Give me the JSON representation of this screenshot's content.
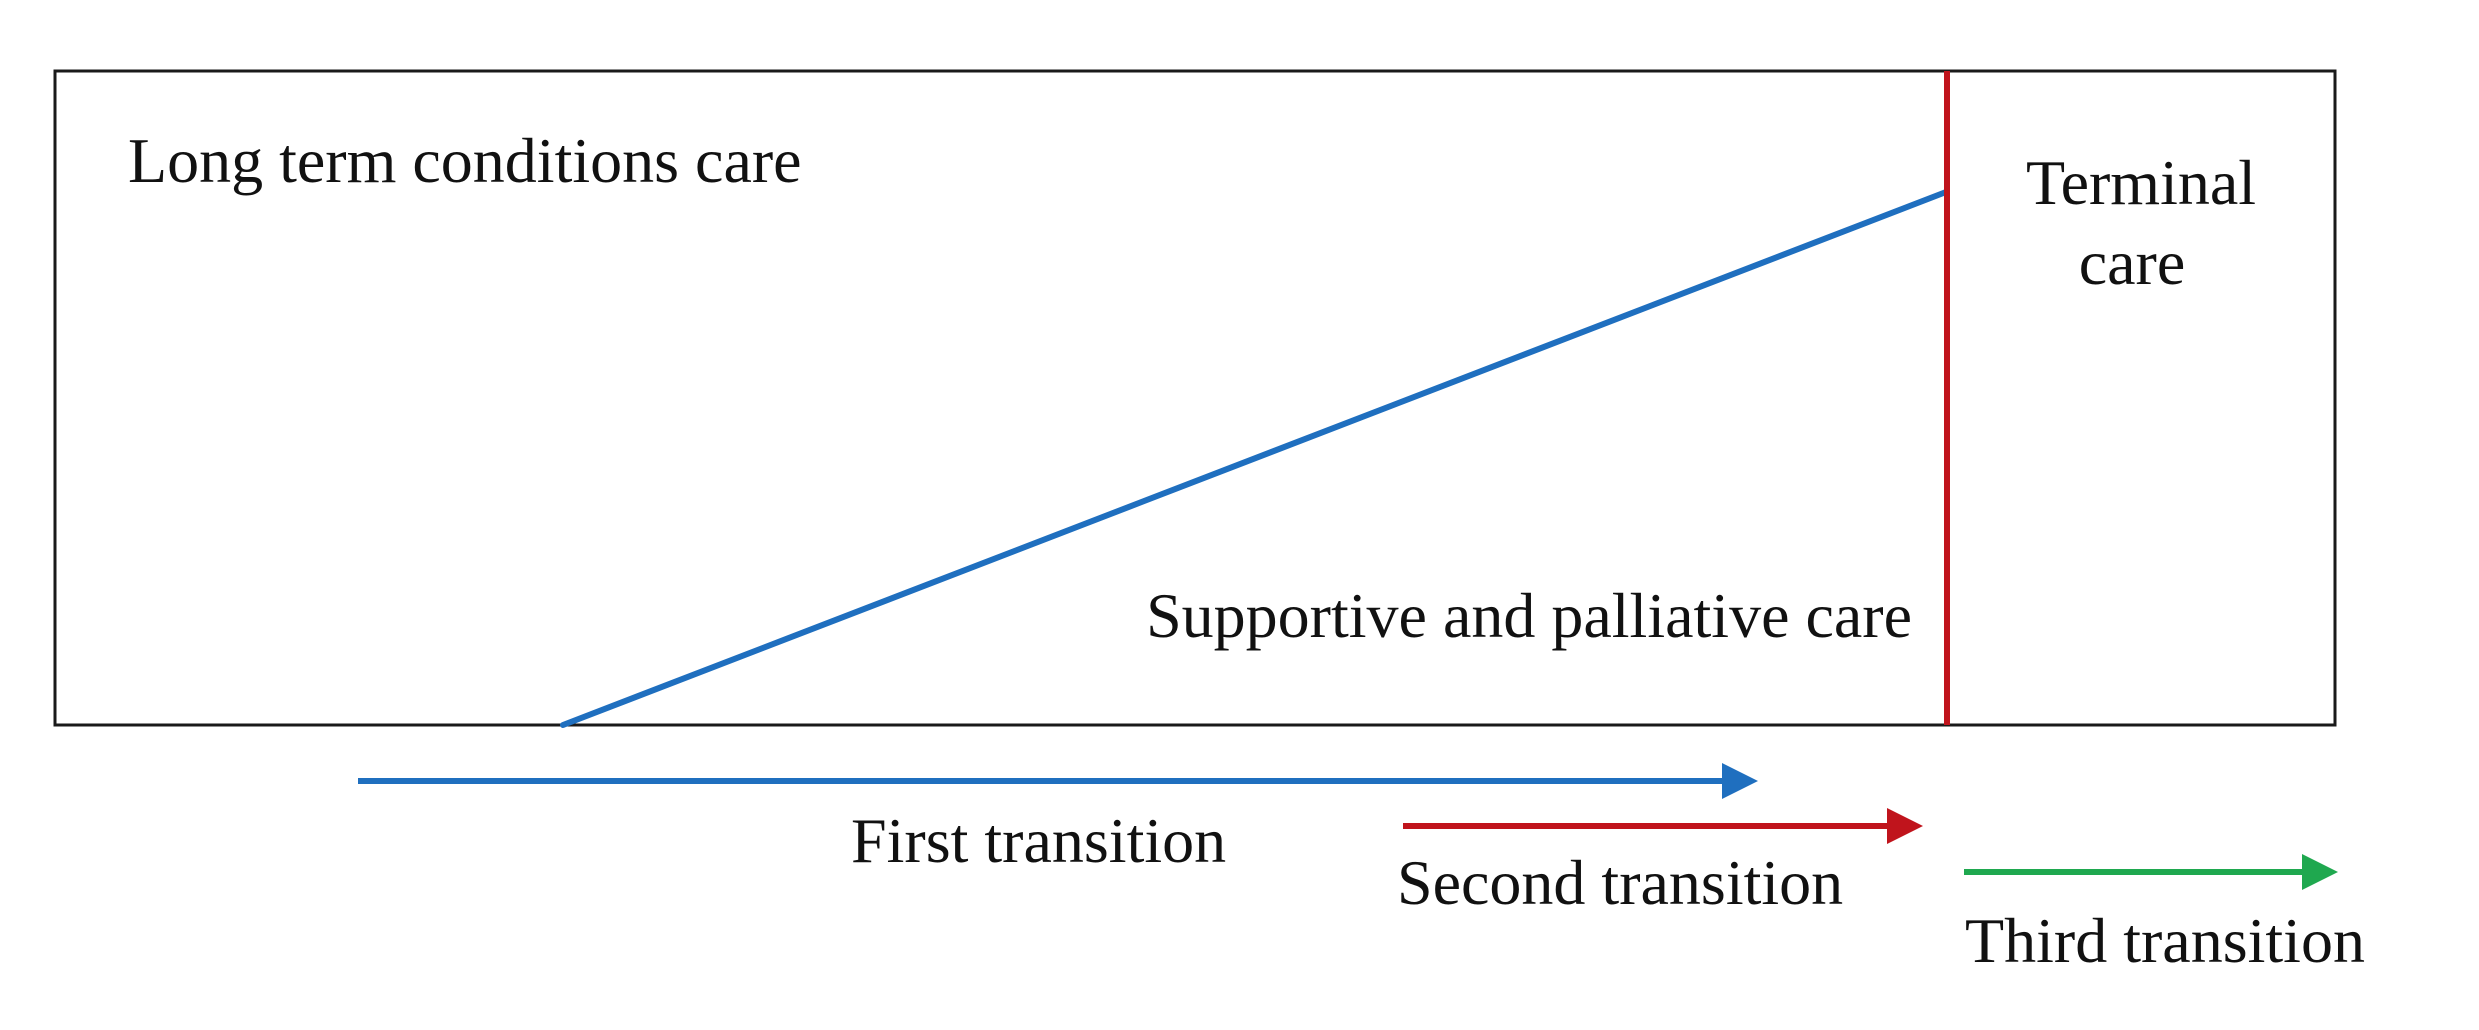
{
  "regions": {
    "long_term": "Long term conditions care",
    "supportive": "Supportive and palliative care",
    "terminal_line1": "Terminal",
    "terminal_line2": "care"
  },
  "transitions": [
    {
      "label": "First transition",
      "color": "#1f6fbf"
    },
    {
      "label": "Second transition",
      "color": "#c0141c"
    },
    {
      "label": "Third transition",
      "color": "#1fa84f"
    }
  ],
  "colors": {
    "frame": "#1a1a1a",
    "diagonal": "#1f6fbf",
    "divider": "#c0141c"
  }
}
